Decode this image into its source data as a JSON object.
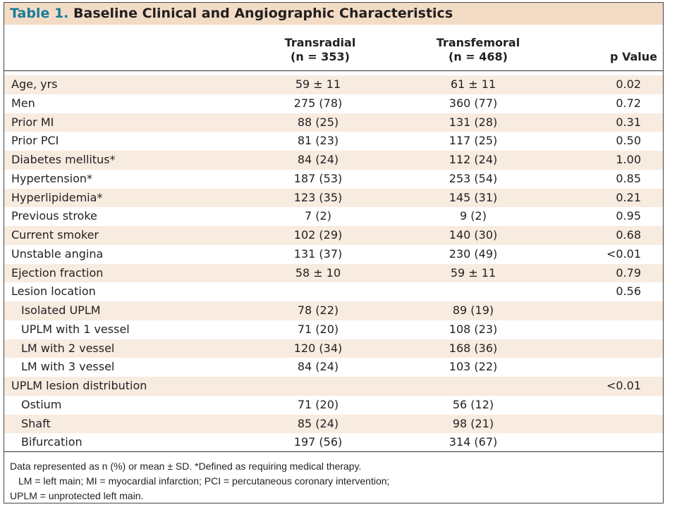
{
  "title": {
    "prefix": "Table 1.",
    "text": "Baseline Clinical and Angiographic Characteristics"
  },
  "header": {
    "col1": {
      "name": "Transradial",
      "n": "(n = 353)"
    },
    "col2": {
      "name": "Transfemoral",
      "n": "(n = 468)"
    },
    "col3": "p Value"
  },
  "rows": [
    {
      "label": "Age, yrs",
      "tr": "59 ± 11",
      "tf": "61 ± 11",
      "p": "0.02"
    },
    {
      "label": "Men",
      "tr": "275 (78)",
      "tf": "360 (77)",
      "p": "0.72"
    },
    {
      "label": "Prior MI",
      "tr": "88 (25)",
      "tf": "131 (28)",
      "p": "0.31"
    },
    {
      "label": "Prior PCI",
      "tr": "81 (23)",
      "tf": "117 (25)",
      "p": "0.50"
    },
    {
      "label": "Diabetes mellitus*",
      "tr": "84 (24)",
      "tf": "112 (24)",
      "p": "1.00"
    },
    {
      "label": "Hypertension*",
      "tr": "187 (53)",
      "tf": "253 (54)",
      "p": "0.85"
    },
    {
      "label": "Hyperlipidemia*",
      "tr": "123 (35)",
      "tf": "145 (31)",
      "p": "0.21"
    },
    {
      "label": "Previous stroke",
      "tr": "7 (2)",
      "tf": "9 (2)",
      "p": "0.95"
    },
    {
      "label": "Current smoker",
      "tr": "102 (29)",
      "tf": "140 (30)",
      "p": "0.68"
    },
    {
      "label": "Unstable angina",
      "tr": "131 (37)",
      "tf": "230 (49)",
      "p": "<0.01"
    },
    {
      "label": "Ejection fraction",
      "tr": "58 ± 10",
      "tf": "59 ± 11",
      "p": "0.79"
    },
    {
      "label": "Lesion location",
      "tr": "",
      "tf": "",
      "p": "0.56"
    },
    {
      "label": "Isolated UPLM",
      "tr": "78 (22)",
      "tf": "89 (19)",
      "p": ""
    },
    {
      "label": "UPLM with 1 vessel",
      "tr": "71 (20)",
      "tf": "108 (23)",
      "p": ""
    },
    {
      "label": "LM with 2 vessel",
      "tr": "120 (34)",
      "tf": "168 (36)",
      "p": ""
    },
    {
      "label": "LM with 3 vessel",
      "tr": "84 (24)",
      "tf": "103 (22)",
      "p": ""
    },
    {
      "label": "UPLM lesion distribution",
      "tr": "",
      "tf": "",
      "p": "<0.01"
    },
    {
      "label": "Ostium",
      "tr": "71 (20)",
      "tf": "56 (12)",
      "p": ""
    },
    {
      "label": "Shaft",
      "tr": "85 (24)",
      "tf": "98 (21)",
      "p": ""
    },
    {
      "label": "Bifurcation",
      "tr": "197 (56)",
      "tf": "314 (67)",
      "p": ""
    }
  ],
  "footer": {
    "line1": "Data represented as n (%) or mean ± SD. *Defined as requiring medical therapy.",
    "line2": "LM = left main; MI = myocardial infarction; PCI = percutaneous coronary intervention;",
    "line3": "UPLM = unprotected left main."
  }
}
